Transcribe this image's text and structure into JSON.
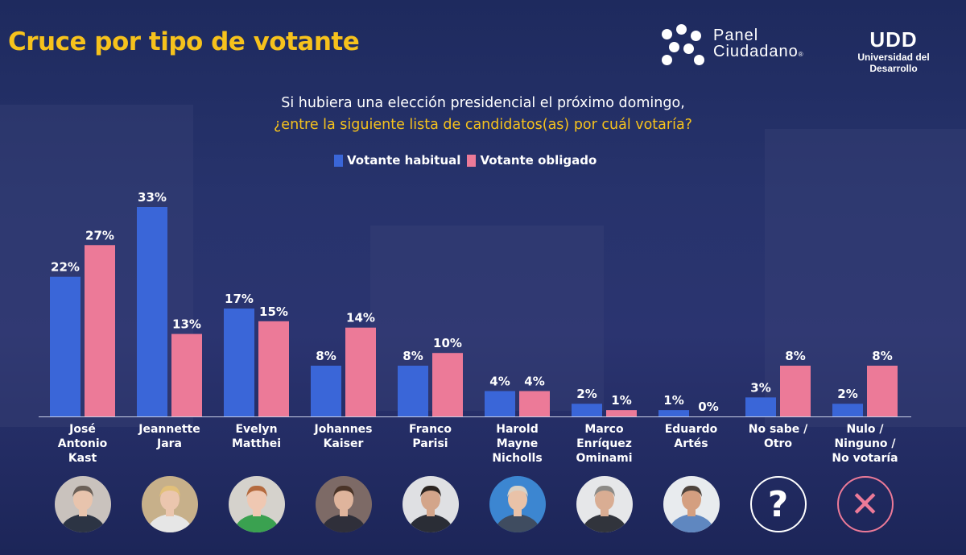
{
  "header": {
    "title": "Cruce por tipo de votante",
    "brand1_line1": "Panel",
    "brand1_line2": "Ciudadano",
    "brand1_mark": "®",
    "brand2_mark": "UDD",
    "brand2_name": "Universidad del Desarrollo"
  },
  "question": {
    "line1": "Si hubiera una elección presidencial el próximo domingo,",
    "line2": "¿entre la siguiente lista de candidatos(as) por cuál votaría?"
  },
  "colors": {
    "habitual": "#3a66d8",
    "obligado": "#ec7a98",
    "accent": "#f6c21c",
    "background": "#24306a"
  },
  "chart_data": {
    "type": "bar",
    "title": "Cruce por tipo de votante",
    "categories": [
      [
        "José",
        "Antonio",
        "Kast"
      ],
      [
        "Jeannette",
        "Jara"
      ],
      [
        "Evelyn",
        "Matthei"
      ],
      [
        "Johannes",
        "Kaiser"
      ],
      [
        "Franco",
        "Parisi"
      ],
      [
        "Harold",
        "Mayne",
        "Nicholls"
      ],
      [
        "Marco",
        "Enríquez",
        "Ominami"
      ],
      [
        "Eduardo",
        "Artés"
      ],
      [
        "No sabe /",
        "Otro"
      ],
      [
        "Nulo /",
        "Ninguno /",
        "No votaría"
      ]
    ],
    "series": [
      {
        "name": "Votante habitual",
        "values": [
          22,
          33,
          17,
          8,
          8,
          4,
          2,
          1,
          3,
          2
        ],
        "labels": [
          "22%",
          "33%",
          "17%",
          "8%",
          "8%",
          "4%",
          "2%",
          "1%",
          "3%",
          "2%"
        ]
      },
      {
        "name": "Votante obligado",
        "values": [
          27,
          13,
          15,
          14,
          10,
          4,
          1,
          0,
          8,
          8
        ],
        "labels": [
          "27%",
          "13%",
          "15%",
          "14%",
          "10%",
          "4%",
          "1%",
          "0%",
          "8%",
          "8%"
        ]
      }
    ],
    "ylim": [
      0,
      35
    ],
    "grid": false,
    "legend_position": "top-center",
    "xlabel": "",
    "ylabel": ""
  },
  "avatars": [
    {
      "name": "avatar-kast",
      "kind": "photo",
      "bg": "#c9c2bd",
      "suit": "#2c3444",
      "skin": "#e8c4ad",
      "hair": "#6b6058"
    },
    {
      "name": "avatar-jara",
      "kind": "photo",
      "bg": "#c7b08a",
      "suit": "#e6e6e6",
      "skin": "#ebc6ae",
      "hair": "#e2c07a"
    },
    {
      "name": "avatar-matthei",
      "kind": "photo",
      "bg": "#d5d2cc",
      "suit": "#3aa150",
      "skin": "#efc8b2",
      "hair": "#b46a3e"
    },
    {
      "name": "avatar-kaiser",
      "kind": "photo",
      "bg": "#7d6a66",
      "suit": "#2f2f3a",
      "skin": "#dfb49c",
      "hair": "#4a3428"
    },
    {
      "name": "avatar-parisi",
      "kind": "photo",
      "bg": "#dfe0e3",
      "suit": "#2a2d36",
      "skin": "#d3a58a",
      "hair": "#2b2420"
    },
    {
      "name": "avatar-mayne",
      "kind": "photo",
      "bg": "#3c86d1",
      "suit": "#3f4c60",
      "skin": "#e9c2a8",
      "hair": "#d8d1c6"
    },
    {
      "name": "avatar-meo",
      "kind": "photo",
      "bg": "#e6e7e9",
      "suit": "#31343c",
      "skin": "#d9ad93",
      "hair": "#8c8a86"
    },
    {
      "name": "avatar-artes",
      "kind": "photo",
      "bg": "#e8ebee",
      "suit": "#5f87c0",
      "skin": "#d49f80",
      "hair": "#4d433c"
    },
    {
      "name": "avatar-no-sabe",
      "kind": "symbol",
      "glyph": "?",
      "color": "#ffffff",
      "border": "#ffffff"
    },
    {
      "name": "avatar-nulo",
      "kind": "symbol",
      "glyph": "✕",
      "color": "#ec7a98",
      "border": "#ec7a98"
    }
  ]
}
